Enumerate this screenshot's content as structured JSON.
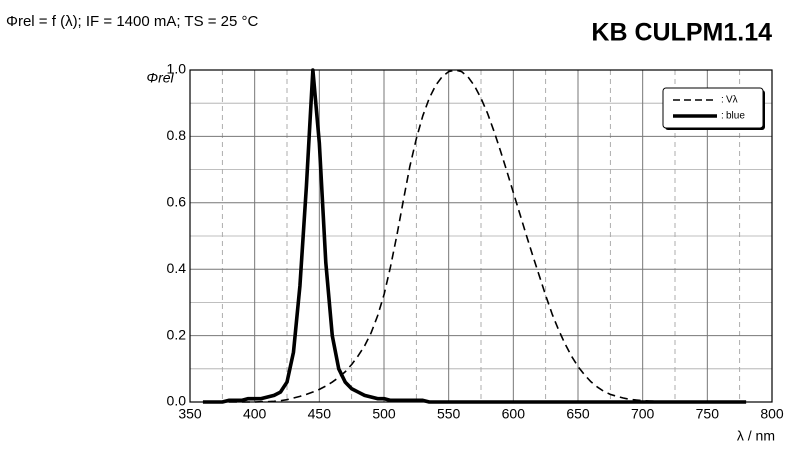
{
  "chart_data": {
    "type": "line",
    "subtitle": "Φrel = f (λ); IF = 1400 mA; TS = 25 °C",
    "title": "KB CULPM1.14",
    "y_label": "Φrel",
    "x_label": "λ / nm",
    "xlim": [
      350,
      800
    ],
    "xticks": [
      350,
      400,
      450,
      500,
      550,
      600,
      650,
      700,
      750,
      800
    ],
    "ylim": [
      0,
      1
    ],
    "yticks": [
      {
        "value": 0,
        "label": "0.0"
      },
      0.2,
      0.4,
      0.6,
      0.8,
      {
        "value": 1,
        "label": "1.0"
      }
    ],
    "grid": true,
    "legend": "upper right",
    "x": [
      360,
      365,
      370,
      375,
      380,
      385,
      390,
      395,
      400,
      405,
      410,
      415,
      420,
      425,
      430,
      435,
      440,
      445,
      450,
      455,
      460,
      465,
      470,
      475,
      480,
      485,
      490,
      495,
      500,
      505,
      510,
      515,
      520,
      525,
      530,
      535,
      540,
      545,
      550,
      555,
      560,
      565,
      570,
      575,
      580,
      585,
      590,
      595,
      600,
      605,
      610,
      615,
      620,
      625,
      630,
      635,
      640,
      645,
      650,
      655,
      660,
      665,
      670,
      675,
      680,
      685,
      690,
      695,
      700,
      705,
      710,
      715,
      720,
      725,
      730,
      735,
      740,
      745,
      750,
      755,
      760,
      765,
      770,
      775,
      780
    ],
    "series": [
      {
        "name": "Vλ",
        "color": "#000000",
        "line_style": "dashed",
        "values": [
          0,
          0,
          0,
          0,
          0,
          0,
          0,
          0,
          0,
          0.001,
          0.001,
          0.002,
          0.004,
          0.007,
          0.012,
          0.017,
          0.023,
          0.03,
          0.038,
          0.048,
          0.06,
          0.074,
          0.091,
          0.113,
          0.139,
          0.169,
          0.208,
          0.259,
          0.323,
          0.407,
          0.503,
          0.608,
          0.71,
          0.793,
          0.862,
          0.915,
          0.954,
          0.98,
          0.995,
          1.0,
          0.995,
          0.979,
          0.952,
          0.915,
          0.87,
          0.816,
          0.757,
          0.695,
          0.631,
          0.567,
          0.503,
          0.441,
          0.381,
          0.321,
          0.265,
          0.217,
          0.175,
          0.138,
          0.107,
          0.082,
          0.061,
          0.045,
          0.032,
          0.023,
          0.017,
          0.012,
          0.008,
          0.006,
          0.004,
          0.003,
          0.002,
          0.001,
          0.001,
          0.001,
          0,
          0,
          0,
          0,
          0,
          0,
          0,
          0,
          0,
          0,
          0
        ]
      },
      {
        "name": "blue",
        "color": "#000000",
        "line_style": "solid",
        "values": [
          0,
          0,
          0,
          0,
          0.005,
          0.005,
          0.005,
          0.01,
          0.01,
          0.01,
          0.015,
          0.02,
          0.03,
          0.06,
          0.15,
          0.35,
          0.65,
          1.0,
          0.78,
          0.42,
          0.2,
          0.1,
          0.06,
          0.04,
          0.03,
          0.02,
          0.015,
          0.01,
          0.01,
          0.005,
          0.005,
          0.005,
          0.005,
          0.005,
          0.005,
          0,
          0,
          0,
          0,
          0,
          0,
          0,
          0,
          0,
          0,
          0,
          0,
          0,
          0,
          0,
          0,
          0,
          0,
          0,
          0,
          0,
          0,
          0,
          0,
          0,
          0,
          0,
          0,
          0,
          0,
          0,
          0,
          0,
          0,
          0,
          0,
          0,
          0,
          0,
          0,
          0,
          0,
          0,
          0,
          0,
          0,
          0,
          0,
          0,
          0
        ]
      }
    ]
  }
}
